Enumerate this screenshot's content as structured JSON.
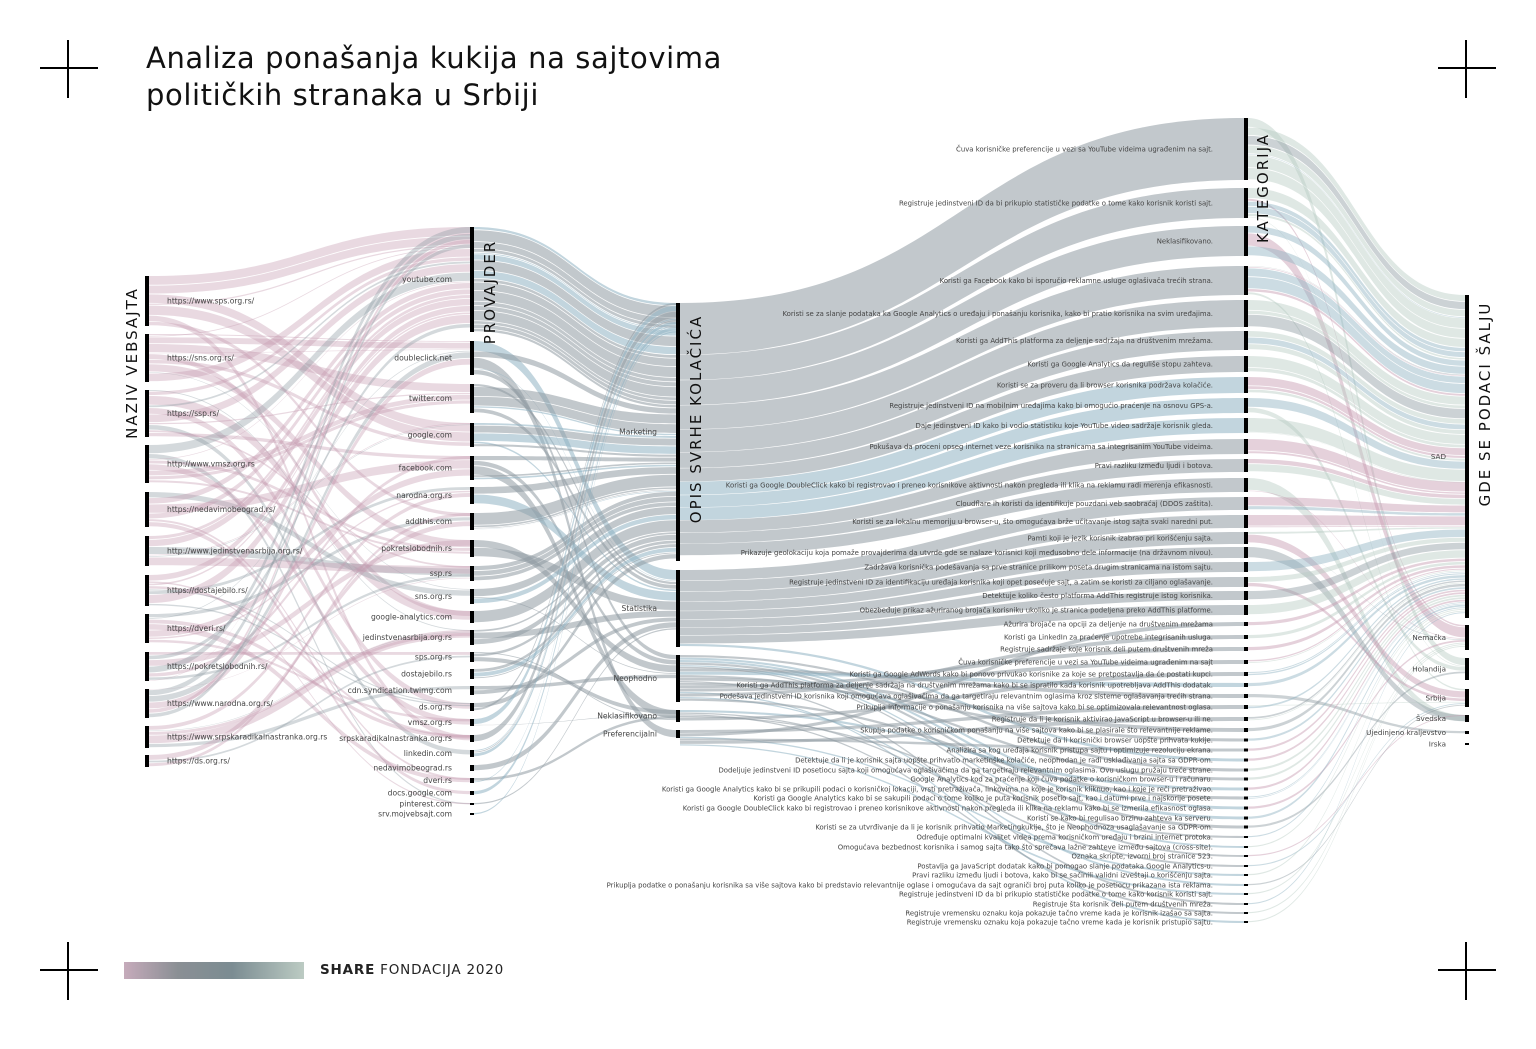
{
  "title": {
    "line1": "Analiza ponašanja kukija na sajtovima",
    "line2": "političkih stranaka u Srbiji"
  },
  "headers": {
    "websites": "NAZIV VEBSAJTA",
    "providers": "PROVAJDER",
    "purpose": "OPIS SVRHE KOLAČIĆA",
    "category": "KATEGORIJA",
    "destination": "GDE SE PODACI ŠALJU"
  },
  "websites": [
    "https://www.sps.org.rs/",
    "https://sns.org.rs/",
    "https://ssp.rs/",
    "http://www.vmsz.org.rs",
    "https://nedavimobeograd.rs/",
    "http://www.jedinstvenasrbija.org.rs/",
    "https://dostajebilo.rs/",
    "https://dveri.rs/",
    "https://pokretslobodnih.rs/",
    "https://www.narodna.org.rs/",
    "https://www.srpskaradikalnastranka.org.rs",
    "https://ds.org.rs/"
  ],
  "providers": [
    "youtube.com",
    "doubleclick.net",
    "twitter.com",
    "google.com",
    "facebook.com",
    "narodna.org.rs",
    "addthis.com",
    "pokretslobodnih.rs",
    "ssp.rs",
    "sns.org.rs",
    "google-analytics.com",
    "jedinstvenasrbija.org.rs",
    "sps.org.rs",
    "dostajebilo.rs",
    "cdn.syndication.twimg.com",
    "ds.org.rs",
    "vmsz.org.rs",
    "srpskaradikalnastranka.org.rs",
    "linkedin.com",
    "nedavimobeograd.rs",
    "dveri.rs",
    "docs.google.com",
    "pinterest.com",
    "srv.mojvebsajt.com"
  ],
  "categories": [
    "Marketing",
    "Statistika",
    "Neophodno",
    "Neklasifikovano",
    "Preferencijalni"
  ],
  "descriptions": [
    "Čuva korisničke preferencije u vezi sa YouTube videima ugrađenim na sajt.",
    "Registruje jedinstveni ID da bi prikupio statističke podatke o tome kako korisnik koristi sajt.",
    "Neklasifikovano.",
    "Koristi ga Facebook kako bi isporučio reklamne usluge oglašivača trećih strana.",
    "Koristi se za slanje podataka ka Google Analytics o uređaju i ponašanju korisnika, kako bi pratio korisnika na svim uređajima.",
    "Koristi ga AddThis platforma za deljenje sadržaja na društvenim mrežama.",
    "Koristi ga Google Analytics da reguliše stopu zahteva.",
    "Koristi se za proveru da li browser korisnika podržava kolačiće.",
    "Registruje jedinstveni ID na mobilnim uređajima kako bi omogućio praćenje na osnovu GPS-a.",
    "Daje jedinstveni ID kako bi vodio statistiku koje YouTube video sadržaje korisnik gleda.",
    "Pokušava da proceni opseg internet veze korisnika na stranicama sa integrisanim YouTube videima.",
    "Pravi razliku između ljudi i botova.",
    "Koristi ga Google DoubleClick kako bi registrovao i preneo korisnikove aktivnosti nakon pregleda ili klika na reklamu radi merenja efikasnosti.",
    "Cloudflare ih koristi da identifikuje pouzdani veb saobraćaj (DDOS zaštita).",
    "Koristi se za lokalnu memoriju u browser-u, što omogućava brže učitavanje istog sajta svaki naredni put.",
    "Pamti koji je jezik korisnik izabrao pri korišćenju sajta.",
    "Prikazuje geolokaciju koja pomaže provajderima da utvrde gde se nalaze korisnici koji međusobno dele informacije (na državnom nivou).",
    "Zadržava korisnička podešavanja sa prve stranice prilikom poseta drugim stranicama na istom sajtu.",
    "Registruje jedinstveni ID za identifikaciju uređaja korisnika koji opet posećuje sajt, a zatim se koristi za ciljano oglašavanje.",
    "Detektuje koliko često platforma AddThis registruje istog korisnika.",
    "Obezbeđuje prikaz ažuriranog brojača korisniku ukoliko je stranica podeljena preko AddThis platforme.",
    "Ažurira brojače na opciji za deljenje na društvenim mrežama",
    "Koristi ga LinkedIn za praćenje upotrebe integrisanih usluga.",
    "Registruje sadržaje koje korisnik deli putem društvenih mreža",
    "Čuva korisničke preferencije u vezi sa YouTube videima ugrađenim na sajt",
    "Koristi ga Google AdWords kako bi ponovo privukao korisnike za koje se pretpostavlja da će postati kupci.",
    "Koristi ga AddThis platforma za deljenje sadržaja na društvenim mrežama kako bi se ispratilo kada korisnik upotrebljava AddThis dodatak.",
    "Podešava jedinstveni ID korisnika koji omogućava oglašivačima da ga targetiraju relevantnim oglasima kroz sisteme oglašavanja trećih strana.",
    "Prikuplja informacije o ponašanju korisnika na više sajtova kako bi se optimizovala relevantnost oglasa.",
    "Registruje da li je korisnik aktivirao JavaScript u browser-u ili ne.",
    "Skuplja podatke o korisničkom ponašanju na više sajtova kako bi se plasirale što relevantnije reklame.",
    "Detektuje da li korisnički browser uopšte prihvata kukije.",
    "Analizira sa kog uređaja korisnik pristupa sajtu i optimizuje rezoluciju ekrana.",
    "Detektuje da li je korisnik sajta uopšte prihvatio marketinške kolačiće, neophodan je radi usklađivanja sajta sa GDPR-om.",
    "Dodeljuje jedinstveni ID posetiocu sajta koji omogućava oglašivačima da ga targetiraju relevantnim oglasima. Ovu uslugu pružaju treće strane.",
    "Google Analytics kod za praćenje koji čuva podatke o korisničkom browser-u i računaru.",
    "Koristi ga Google Analytics kako bi se prikupili podaci o korisničkoj lokaciji, vrsti pretraživača, linkovima na koje je korisnik kliknuo, kao i koje je reči pretraživao.",
    "Koristi ga Google Analytics kako bi se sakupili podaci o tome koliko je puta korisnik posetio sajt, kao i datumi prve i najskorije posete.",
    "Koristi ga Google DoubleClick kako bi registrovao i preneo korisnikove aktivnosti nakon pregleda ili klika na reklamu kako bi se izmerila efikasnost oglasa.",
    "Koristi se kako bi regulisao brzinu zahteva ka serveru.",
    "Koristi se za utvrđivanje da li je korisnik prihvatio Marketingkukije, što je Neophodnoza usaglašavanje sa GDPR-om.",
    "Određuje optimalni kvalitet videa prema korisničkom uređaju i brzini internet protoka.",
    "Omogućava bezbednost korisnika i samog sajta tako što sprečava lažne zahteve između sajtova (cross-site).",
    "Oznaka skripte, izvorni broj stranice 523.",
    "Postavlja ga JavaScript dodatak kako bi pomogao slanje podataka Google Analytics-u.",
    "Pravi razliku između ljudi i botova, kako bi se sačinili validni izveštaji o korišćenju sajta.",
    "Prikuplja podatke o ponašanju korisnika sa više sajtova kako bi predstavio relevantnije oglase i omogućava da sajt ograniči broj puta koliko je posetiocu prikazana ista reklama.",
    "Registruje jedinstveni ID da bi prikupio statističke podatke o tome kako korisnik koristi sajt.",
    "Registruje šta korisnik deli putem društvenih mreža.",
    "Registruje vremensku oznaku koja pokazuje tačno vreme kada je korisnik izašao sa sajta.",
    "Registruje vremensku oznaku koja pokazuje tačno vreme kada je korisnik pristupio sajtu."
  ],
  "countries": [
    "SAD",
    "Nemačka",
    "Holandija",
    "Srbija",
    "Švedska",
    "Ujedinjeno kraljevstvo",
    "Irska"
  ],
  "colors": {
    "website_flow": "#c59ab0",
    "provider_flow": "#8f9ba2",
    "blue_flow": "#8fb2c2",
    "destination_flow": "#b9cdc4",
    "node_bar": "#000000"
  },
  "footer": {
    "brand_bold": "SHARE",
    "brand_rest": " FONDACIJA 2020"
  }
}
